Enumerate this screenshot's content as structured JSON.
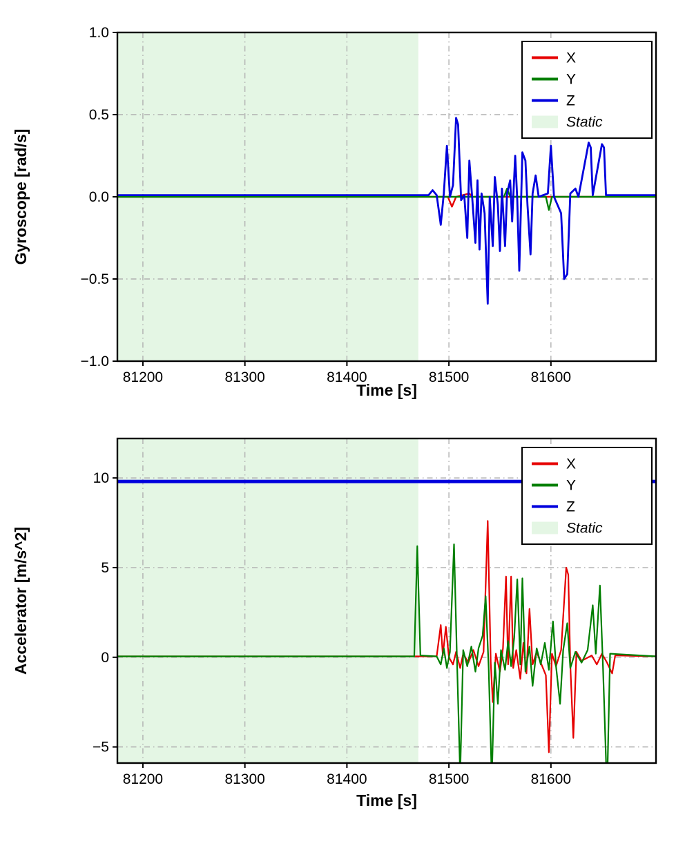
{
  "chart_data": [
    {
      "type": "line",
      "title": "",
      "xlabel": "Time [s]",
      "ylabel": "Gyroscope [rad/s]",
      "xlim": [
        81175,
        81703
      ],
      "ylim": [
        -1.0,
        1.0
      ],
      "xtick_values": [
        81200,
        81300,
        81400,
        81500,
        81600
      ],
      "xtick_labels": [
        "81200",
        "81300",
        "81400",
        "81500",
        "81600"
      ],
      "ytick_values": [
        -1.0,
        -0.5,
        0.0,
        0.5,
        1.0
      ],
      "ytick_labels": [
        "−1.0",
        "−0.5",
        "0.0",
        "0.5",
        "1.0"
      ],
      "grid": true,
      "grid_style": "dash-dot gray",
      "static_region": {
        "x_start": 81175,
        "x_end": 81470,
        "color": "#e4f6e4"
      },
      "legend": {
        "position": "top-right",
        "entries": [
          {
            "label": "X",
            "color": "#e60000",
            "type": "line",
            "italic": false
          },
          {
            "label": "Y",
            "color": "#007f00",
            "type": "line",
            "italic": false
          },
          {
            "label": "Z",
            "color": "#0000dd",
            "type": "line",
            "italic": false
          },
          {
            "label": "Static",
            "color": "#e4f6e4",
            "type": "patch",
            "italic": true
          }
        ]
      },
      "series": [
        {
          "name": "X",
          "color": "#e60000",
          "linewidth": 2.4,
          "points": [
            [
              81175,
              0
            ],
            [
              81499,
              0
            ],
            [
              81503,
              -0.06
            ],
            [
              81507,
              0
            ],
            [
              81520,
              0.02
            ],
            [
              81523,
              0
            ],
            [
              81703,
              0
            ]
          ]
        },
        {
          "name": "Y",
          "color": "#007f00",
          "linewidth": 2.4,
          "points": [
            [
              81175,
              0
            ],
            [
              81554,
              0
            ],
            [
              81557,
              0.05
            ],
            [
              81560,
              0
            ],
            [
              81595,
              0
            ],
            [
              81598,
              -0.08
            ],
            [
              81601,
              0
            ],
            [
              81703,
              0
            ]
          ]
        },
        {
          "name": "Z",
          "color": "#0000dd",
          "linewidth": 2.8,
          "points": [
            [
              81175,
              0.01
            ],
            [
              81480,
              0.01
            ],
            [
              81484,
              0.04
            ],
            [
              81488,
              0.01
            ],
            [
              81492,
              -0.17
            ],
            [
              81495,
              0.02
            ],
            [
              81498,
              0.31
            ],
            [
              81501,
              0
            ],
            [
              81504,
              0.07
            ],
            [
              81507,
              0.48
            ],
            [
              81509,
              0.44
            ],
            [
              81512,
              -0.02
            ],
            [
              81515,
              0.01
            ],
            [
              81518,
              -0.25
            ],
            [
              81520,
              0.22
            ],
            [
              81523,
              -0.02
            ],
            [
              81526,
              -0.28
            ],
            [
              81528,
              0.1
            ],
            [
              81530,
              -0.32
            ],
            [
              81532,
              0.02
            ],
            [
              81535,
              -0.1
            ],
            [
              81538,
              -0.65
            ],
            [
              81540,
              0
            ],
            [
              81543,
              -0.3
            ],
            [
              81545,
              0.12
            ],
            [
              81548,
              -0.05
            ],
            [
              81550,
              -0.33
            ],
            [
              81552,
              0.05
            ],
            [
              81555,
              -0.3
            ],
            [
              81557,
              0.02
            ],
            [
              81560,
              0.1
            ],
            [
              81562,
              -0.15
            ],
            [
              81565,
              0.25
            ],
            [
              81567,
              -0.02
            ],
            [
              81569,
              -0.45
            ],
            [
              81572,
              0.27
            ],
            [
              81575,
              0.22
            ],
            [
              81577,
              -0.05
            ],
            [
              81580,
              -0.35
            ],
            [
              81582,
              0.02
            ],
            [
              81585,
              0.13
            ],
            [
              81588,
              0
            ],
            [
              81597,
              0.02
            ],
            [
              81600,
              0.31
            ],
            [
              81603,
              0
            ],
            [
              81610,
              -0.1
            ],
            [
              81613,
              -0.5
            ],
            [
              81616,
              -0.47
            ],
            [
              81619,
              0.02
            ],
            [
              81624,
              0.05
            ],
            [
              81627,
              0
            ],
            [
              81637,
              0.33
            ],
            [
              81639,
              0.3
            ],
            [
              81641,
              0.01
            ],
            [
              81650,
              0.32
            ],
            [
              81652,
              0.3
            ],
            [
              81654,
              0.01
            ],
            [
              81703,
              0.01
            ]
          ]
        }
      ]
    },
    {
      "type": "line",
      "title": "",
      "xlabel": "Time [s]",
      "ylabel": "Accelerator [m/s^2]",
      "xlim": [
        81175,
        81703
      ],
      "ylim": [
        -5.9,
        12.2
      ],
      "xtick_values": [
        81200,
        81300,
        81400,
        81500,
        81600
      ],
      "xtick_labels": [
        "81200",
        "81300",
        "81400",
        "81500",
        "81600"
      ],
      "ytick_values": [
        -5,
        0,
        5,
        10
      ],
      "ytick_labels": [
        "−5",
        "0",
        "5",
        "10"
      ],
      "grid": true,
      "grid_style": "dash-dot gray",
      "static_region": {
        "x_start": 81175,
        "x_end": 81470,
        "color": "#e4f6e4"
      },
      "legend": {
        "position": "top-right",
        "entries": [
          {
            "label": "X",
            "color": "#e60000",
            "type": "line",
            "italic": false
          },
          {
            "label": "Y",
            "color": "#007f00",
            "type": "line",
            "italic": false
          },
          {
            "label": "Z",
            "color": "#0000dd",
            "type": "line",
            "italic": false
          },
          {
            "label": "Static",
            "color": "#e4f6e4",
            "type": "patch",
            "italic": true
          }
        ]
      },
      "series": [
        {
          "name": "X",
          "color": "#e60000",
          "linewidth": 2.2,
          "points": [
            [
              81175,
              0.05
            ],
            [
              81488,
              0.05
            ],
            [
              81492,
              1.8
            ],
            [
              81494,
              0.1
            ],
            [
              81497,
              1.7
            ],
            [
              81500,
              0
            ],
            [
              81504,
              -0.4
            ],
            [
              81507,
              0.3
            ],
            [
              81511,
              -0.6
            ],
            [
              81514,
              0.2
            ],
            [
              81519,
              -0.3
            ],
            [
              81524,
              0.4
            ],
            [
              81529,
              -0.5
            ],
            [
              81534,
              0.3
            ],
            [
              81538,
              7.6
            ],
            [
              81541,
              -0.3
            ],
            [
              81543,
              -2.5
            ],
            [
              81546,
              0.2
            ],
            [
              81550,
              -0.8
            ],
            [
              81553,
              0.5
            ],
            [
              81556,
              4.5
            ],
            [
              81558,
              -0.4
            ],
            [
              81561,
              4.5
            ],
            [
              81563,
              -0.6
            ],
            [
              81566,
              0.4
            ],
            [
              81570,
              -1.2
            ],
            [
              81573,
              0.8
            ],
            [
              81576,
              -0.9
            ],
            [
              81579,
              2.7
            ],
            [
              81582,
              -0.4
            ],
            [
              81586,
              0.3
            ],
            [
              81590,
              -0.3
            ],
            [
              81595,
              -1
            ],
            [
              81598,
              -5.3
            ],
            [
              81601,
              0.2
            ],
            [
              81605,
              -0.5
            ],
            [
              81610,
              0.4
            ],
            [
              81615,
              5
            ],
            [
              81617,
              4.6
            ],
            [
              81619,
              -0.4
            ],
            [
              81622,
              -4.5
            ],
            [
              81625,
              0.3
            ],
            [
              81630,
              -0.2
            ],
            [
              81640,
              0.1
            ],
            [
              81645,
              -0.4
            ],
            [
              81650,
              0.2
            ],
            [
              81655,
              -0.3
            ],
            [
              81660,
              -0.9
            ],
            [
              81663,
              0.1
            ],
            [
              81703,
              0.05
            ]
          ]
        },
        {
          "name": "Y",
          "color": "#007f00",
          "linewidth": 2.2,
          "points": [
            [
              81175,
              0.05
            ],
            [
              81466,
              0.05
            ],
            [
              81469,
              6.2
            ],
            [
              81472,
              0.1
            ],
            [
              81488,
              0.05
            ],
            [
              81492,
              -0.4
            ],
            [
              81495,
              0.5
            ],
            [
              81498,
              -0.6
            ],
            [
              81501,
              0.3
            ],
            [
              81505,
              6.3
            ],
            [
              81508,
              -0.3
            ],
            [
              81511,
              -6.6
            ],
            [
              81514,
              0.4
            ],
            [
              81518,
              -0.5
            ],
            [
              81522,
              0.6
            ],
            [
              81526,
              -0.8
            ],
            [
              81529,
              0.5
            ],
            [
              81533,
              1.2
            ],
            [
              81536,
              3.4
            ],
            [
              81539,
              -0.6
            ],
            [
              81542,
              -6.9
            ],
            [
              81545,
              -0.3
            ],
            [
              81548,
              -2.6
            ],
            [
              81551,
              0.4
            ],
            [
              81555,
              -0.7
            ],
            [
              81558,
              0.9
            ],
            [
              81561,
              -0.5
            ],
            [
              81564,
              1.1
            ],
            [
              81567,
              4.35
            ],
            [
              81570,
              -0.4
            ],
            [
              81572,
              4.4
            ],
            [
              81575,
              -0.8
            ],
            [
              81579,
              0.6
            ],
            [
              81582,
              -1.6
            ],
            [
              81586,
              0.5
            ],
            [
              81590,
              -0.4
            ],
            [
              81594,
              0.8
            ],
            [
              81598,
              -0.7
            ],
            [
              81602,
              2
            ],
            [
              81605,
              -0.5
            ],
            [
              81609,
              -2.6
            ],
            [
              81612,
              0.4
            ],
            [
              81616,
              1.9
            ],
            [
              81619,
              -0.6
            ],
            [
              81624,
              0.3
            ],
            [
              81630,
              -0.3
            ],
            [
              81636,
              0.4
            ],
            [
              81641,
              2.9
            ],
            [
              81644,
              0.2
            ],
            [
              81648,
              4
            ],
            [
              81651,
              -0.5
            ],
            [
              81655,
              -7.5
            ],
            [
              81658,
              0.2
            ],
            [
              81703,
              0.05
            ]
          ]
        },
        {
          "name": "Z",
          "color": "#0000dd",
          "linewidth": 5,
          "points": [
            [
              81175,
              9.8
            ],
            [
              81703,
              9.8
            ]
          ]
        }
      ]
    }
  ]
}
